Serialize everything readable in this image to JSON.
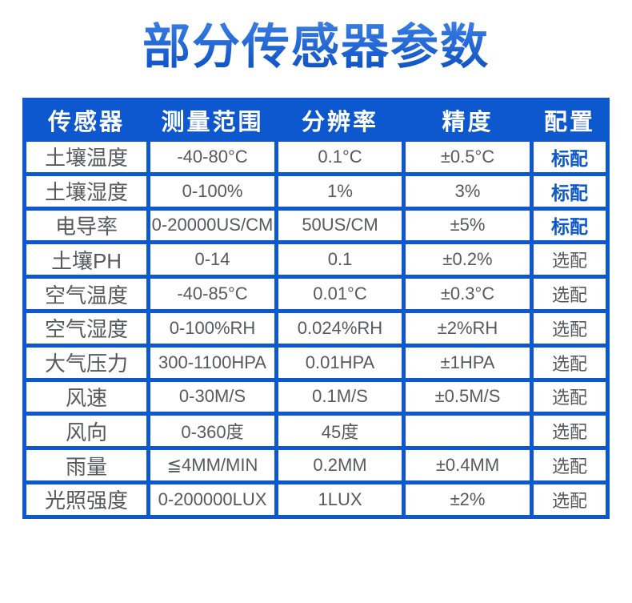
{
  "title": "部分传感器参数",
  "colors": {
    "primary_blue": "#0d58cf",
    "title_blue": "#1460d2",
    "title_blue_top": "#3a80e5",
    "title_blue_bottom": "#0a4ec2",
    "header_text": "#ffffff",
    "cell_text": "#58595b",
    "standard_text": "#0a58cc"
  },
  "table": {
    "columns": [
      "传感器",
      "测量范围",
      "分辨率",
      "精度",
      "配置"
    ],
    "rows": [
      {
        "sensor": "土壤温度",
        "range": "-40-80°C",
        "resolution": "0.1°C",
        "accuracy": "±0.5°C",
        "config": "标配",
        "standard": true
      },
      {
        "sensor": "土壤湿度",
        "range": "0-100%",
        "resolution": "1%",
        "accuracy": "3%",
        "config": "标配",
        "standard": true
      },
      {
        "sensor": "电导率",
        "range": "0-20000US/CM",
        "resolution": "50US/CM",
        "accuracy": "±5%",
        "config": "标配",
        "standard": true
      },
      {
        "sensor": "土壤PH",
        "range": "0-14",
        "resolution": "0.1",
        "accuracy": "±0.2%",
        "config": "选配",
        "standard": false
      },
      {
        "sensor": "空气温度",
        "range": "-40-85°C",
        "resolution": "0.01°C",
        "accuracy": "±0.3°C",
        "config": "选配",
        "standard": false
      },
      {
        "sensor": "空气湿度",
        "range": "0-100%RH",
        "resolution": "0.024%RH",
        "accuracy": "±2%RH",
        "config": "选配",
        "standard": false
      },
      {
        "sensor": "大气压力",
        "range": "300-1100HPA",
        "resolution": "0.01HPA",
        "accuracy": "±1HPA",
        "config": "选配",
        "standard": false
      },
      {
        "sensor": "风速",
        "range": "0-30M/S",
        "resolution": "0.1M/S",
        "accuracy": "±0.5M/S",
        "config": "选配",
        "standard": false
      },
      {
        "sensor": "风向",
        "range": "0-360度",
        "resolution": "45度",
        "accuracy": "",
        "config": "选配",
        "standard": false
      },
      {
        "sensor": "雨量",
        "range": "≦4MM/MIN",
        "resolution": "0.2MM",
        "accuracy": "±0.4MM",
        "config": "选配",
        "standard": false
      },
      {
        "sensor": "光照强度",
        "range": "0-200000LUX",
        "resolution": "1LUX",
        "accuracy": "±2%",
        "config": "选配",
        "standard": false
      }
    ]
  }
}
